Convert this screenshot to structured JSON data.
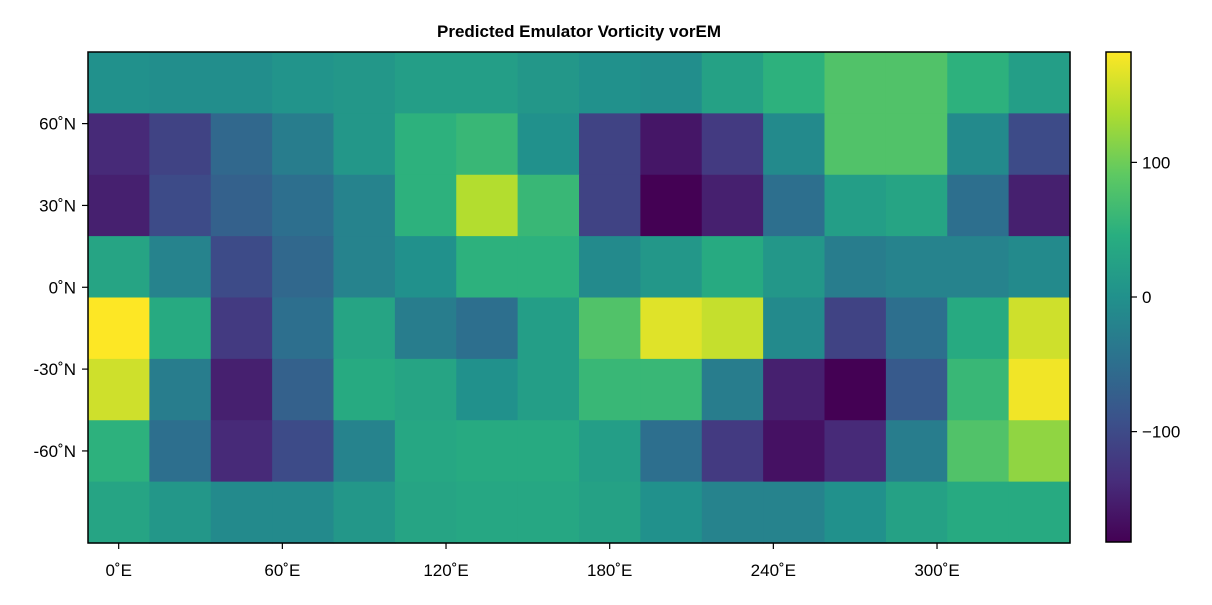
{
  "chart_data": {
    "type": "heatmap",
    "title": "Predicted Emulator Vorticity vorEM",
    "x_tick_labels": [
      "0˚E",
      "60˚E",
      "120˚E",
      "180˚E",
      "240˚E",
      "300˚E"
    ],
    "x_tick_values": [
      0,
      60,
      120,
      180,
      240,
      300
    ],
    "y_tick_labels": [
      "60˚N",
      "30˚N",
      "0˚N",
      "-30˚N",
      "-60˚N"
    ],
    "y_tick_values": [
      60,
      30,
      0,
      -30,
      -60
    ],
    "x_centers": [
      0,
      22.5,
      45,
      67.5,
      90,
      112.5,
      135,
      157.5,
      180,
      202.5,
      225,
      247.5,
      270,
      292.5,
      315,
      337.5
    ],
    "y_centers": [
      75,
      52.5,
      30,
      7.5,
      -15,
      -37.5,
      -60,
      -82.5
    ],
    "xlim": [
      -11.25,
      348.75
    ],
    "ylim": [
      -93.75,
      86.25
    ],
    "colorbar": {
      "colormap": "viridis",
      "range": [
        -182,
        182
      ],
      "tick_labels": [
        "100",
        "0",
        "−100"
      ],
      "tick_values": [
        100,
        0,
        -100
      ]
    },
    "grid": false,
    "values": [
      [
        0,
        -5,
        -5,
        5,
        10,
        20,
        20,
        10,
        0,
        -5,
        25,
        50,
        80,
        80,
        50,
        20
      ],
      [
        -140,
        -110,
        -60,
        -30,
        10,
        50,
        60,
        0,
        -110,
        -160,
        -120,
        -10,
        80,
        80,
        -10,
        -100
      ],
      [
        -150,
        -100,
        -70,
        -50,
        -20,
        50,
        140,
        60,
        -110,
        -182,
        -150,
        -50,
        20,
        30,
        -50,
        -150
      ],
      [
        30,
        -20,
        -100,
        -60,
        -20,
        0,
        50,
        50,
        -10,
        10,
        40,
        10,
        -30,
        -20,
        -20,
        -10
      ],
      [
        182,
        40,
        -120,
        -50,
        30,
        -30,
        -50,
        20,
        80,
        165,
        150,
        -10,
        -110,
        -50,
        40,
        155
      ],
      [
        155,
        -30,
        -150,
        -70,
        40,
        30,
        0,
        20,
        60,
        60,
        -30,
        -150,
        -182,
        -80,
        60,
        175
      ],
      [
        50,
        -50,
        -140,
        -100,
        -20,
        35,
        40,
        40,
        20,
        -50,
        -120,
        -165,
        -140,
        -30,
        80,
        120
      ],
      [
        30,
        10,
        -10,
        -10,
        10,
        30,
        35,
        35,
        25,
        0,
        -20,
        -20,
        0,
        25,
        40,
        40
      ]
    ]
  }
}
